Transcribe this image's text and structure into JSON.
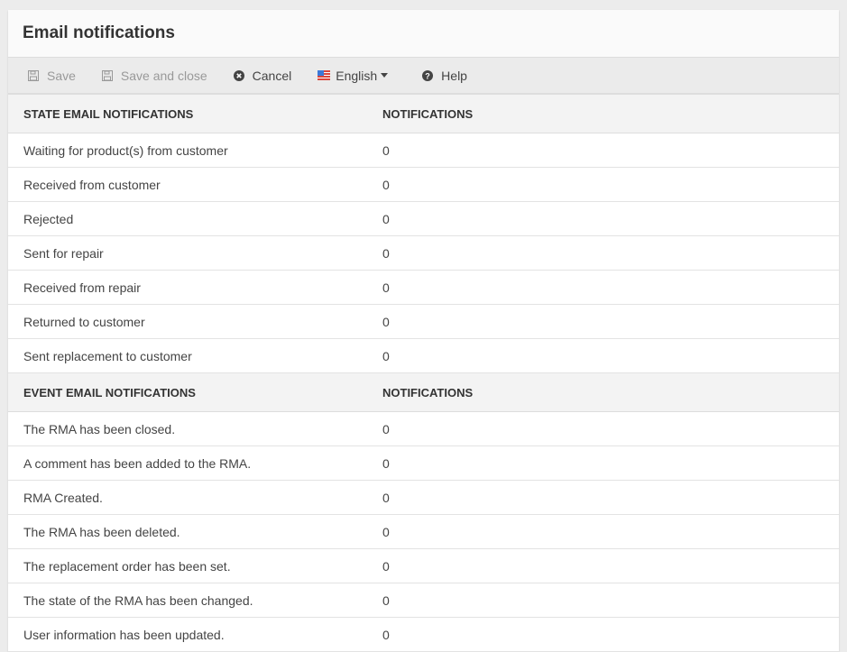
{
  "header": {
    "title": "Email notifications"
  },
  "toolbar": {
    "save": "Save",
    "save_close": "Save and close",
    "cancel": "Cancel",
    "language": "English",
    "help": "Help"
  },
  "state_section": {
    "col1": "STATE EMAIL NOTIFICATIONS",
    "col2": "NOTIFICATIONS",
    "rows": [
      {
        "name": "Waiting for product(s) from customer",
        "count": "0"
      },
      {
        "name": "Received from customer",
        "count": "0"
      },
      {
        "name": "Rejected",
        "count": "0"
      },
      {
        "name": "Sent for repair",
        "count": "0"
      },
      {
        "name": "Received from repair",
        "count": "0"
      },
      {
        "name": "Returned to customer",
        "count": "0"
      },
      {
        "name": "Sent replacement to customer",
        "count": "0"
      }
    ]
  },
  "event_section": {
    "col1": "EVENT EMAIL NOTIFICATIONS",
    "col2": "NOTIFICATIONS",
    "rows": [
      {
        "name": "The RMA has been closed.",
        "count": "0"
      },
      {
        "name": "A comment has been added to the RMA.",
        "count": "0"
      },
      {
        "name": "RMA Created.",
        "count": "0"
      },
      {
        "name": "The RMA has been deleted.",
        "count": "0"
      },
      {
        "name": "The replacement order has been set.",
        "count": "0"
      },
      {
        "name": "The state of the RMA has been changed.",
        "count": "0"
      },
      {
        "name": "User information has been updated.",
        "count": "0"
      }
    ]
  }
}
